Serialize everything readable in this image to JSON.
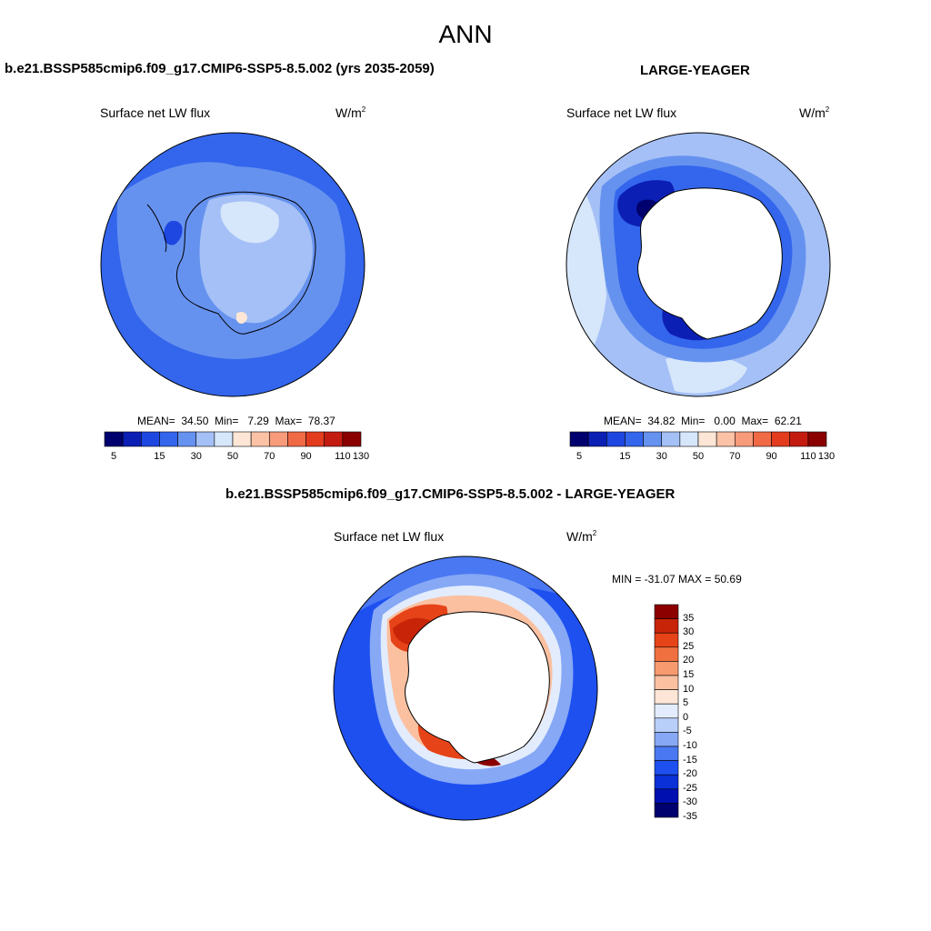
{
  "title": "ANN",
  "colors": {
    "cmp_scale": [
      "#00006e",
      "#0c1fb4",
      "#1e46e0",
      "#3366ec",
      "#6692ef",
      "#a4c0f6",
      "#d6e6fb",
      "#fde6d6",
      "#fbc2a6",
      "#f79b7a",
      "#f06a46",
      "#e33b1e",
      "#c41b10",
      "#8a0000"
    ],
    "diff_scale": [
      "#00006e",
      "#0010b0",
      "#0a30d8",
      "#1e50f0",
      "#4a78f2",
      "#86a8f5",
      "#b8cff9",
      "#e2ecfd",
      "#fde6d6",
      "#fbc0a0",
      "#f79a70",
      "#f17040",
      "#e64318",
      "#c82408",
      "#8c0000"
    ],
    "land": "#ffffff",
    "coast": "#000000"
  },
  "panels": {
    "left": {
      "case": "b.e21.BSSP585cmip6.f09_g17.CMIP6-SSP5-8.5.002 (yrs 2035-2059)",
      "variable": "Surface net LW flux",
      "units": "W/m",
      "units_exp": "2",
      "mean_label": "MEAN=",
      "mean_value": "34.50",
      "min_label": "Min=",
      "min_value": "7.29",
      "max_label": "Max=",
      "max_value": "78.37"
    },
    "right": {
      "case": "LARGE-YEAGER",
      "variable": "Surface net LW flux",
      "units": "W/m",
      "units_exp": "2",
      "mean_label": "MEAN=",
      "mean_value": "34.82",
      "min_label": "Min=",
      "min_value": "0.00",
      "max_label": "Max=",
      "max_value": "62.21"
    },
    "diff": {
      "case": "b.e21.BSSP585cmip6.f09_g17.CMIP6-SSP5-8.5.002 - LARGE-YEAGER",
      "variable": "Surface net LW flux",
      "units": "W/m",
      "units_exp": "2",
      "minmax": "MIN = -31.07 MAX =  50.69"
    }
  },
  "colorbar_cmp_ticks": [
    "5",
    "15",
    "30",
    "50",
    "70",
    "90",
    "110",
    "130"
  ],
  "colorbar_diff_ticks": [
    "35",
    "30",
    "25",
    "20",
    "15",
    "10",
    "5",
    "0",
    "-5",
    "-10",
    "-15",
    "-20",
    "-25",
    "-30",
    "-35"
  ]
}
